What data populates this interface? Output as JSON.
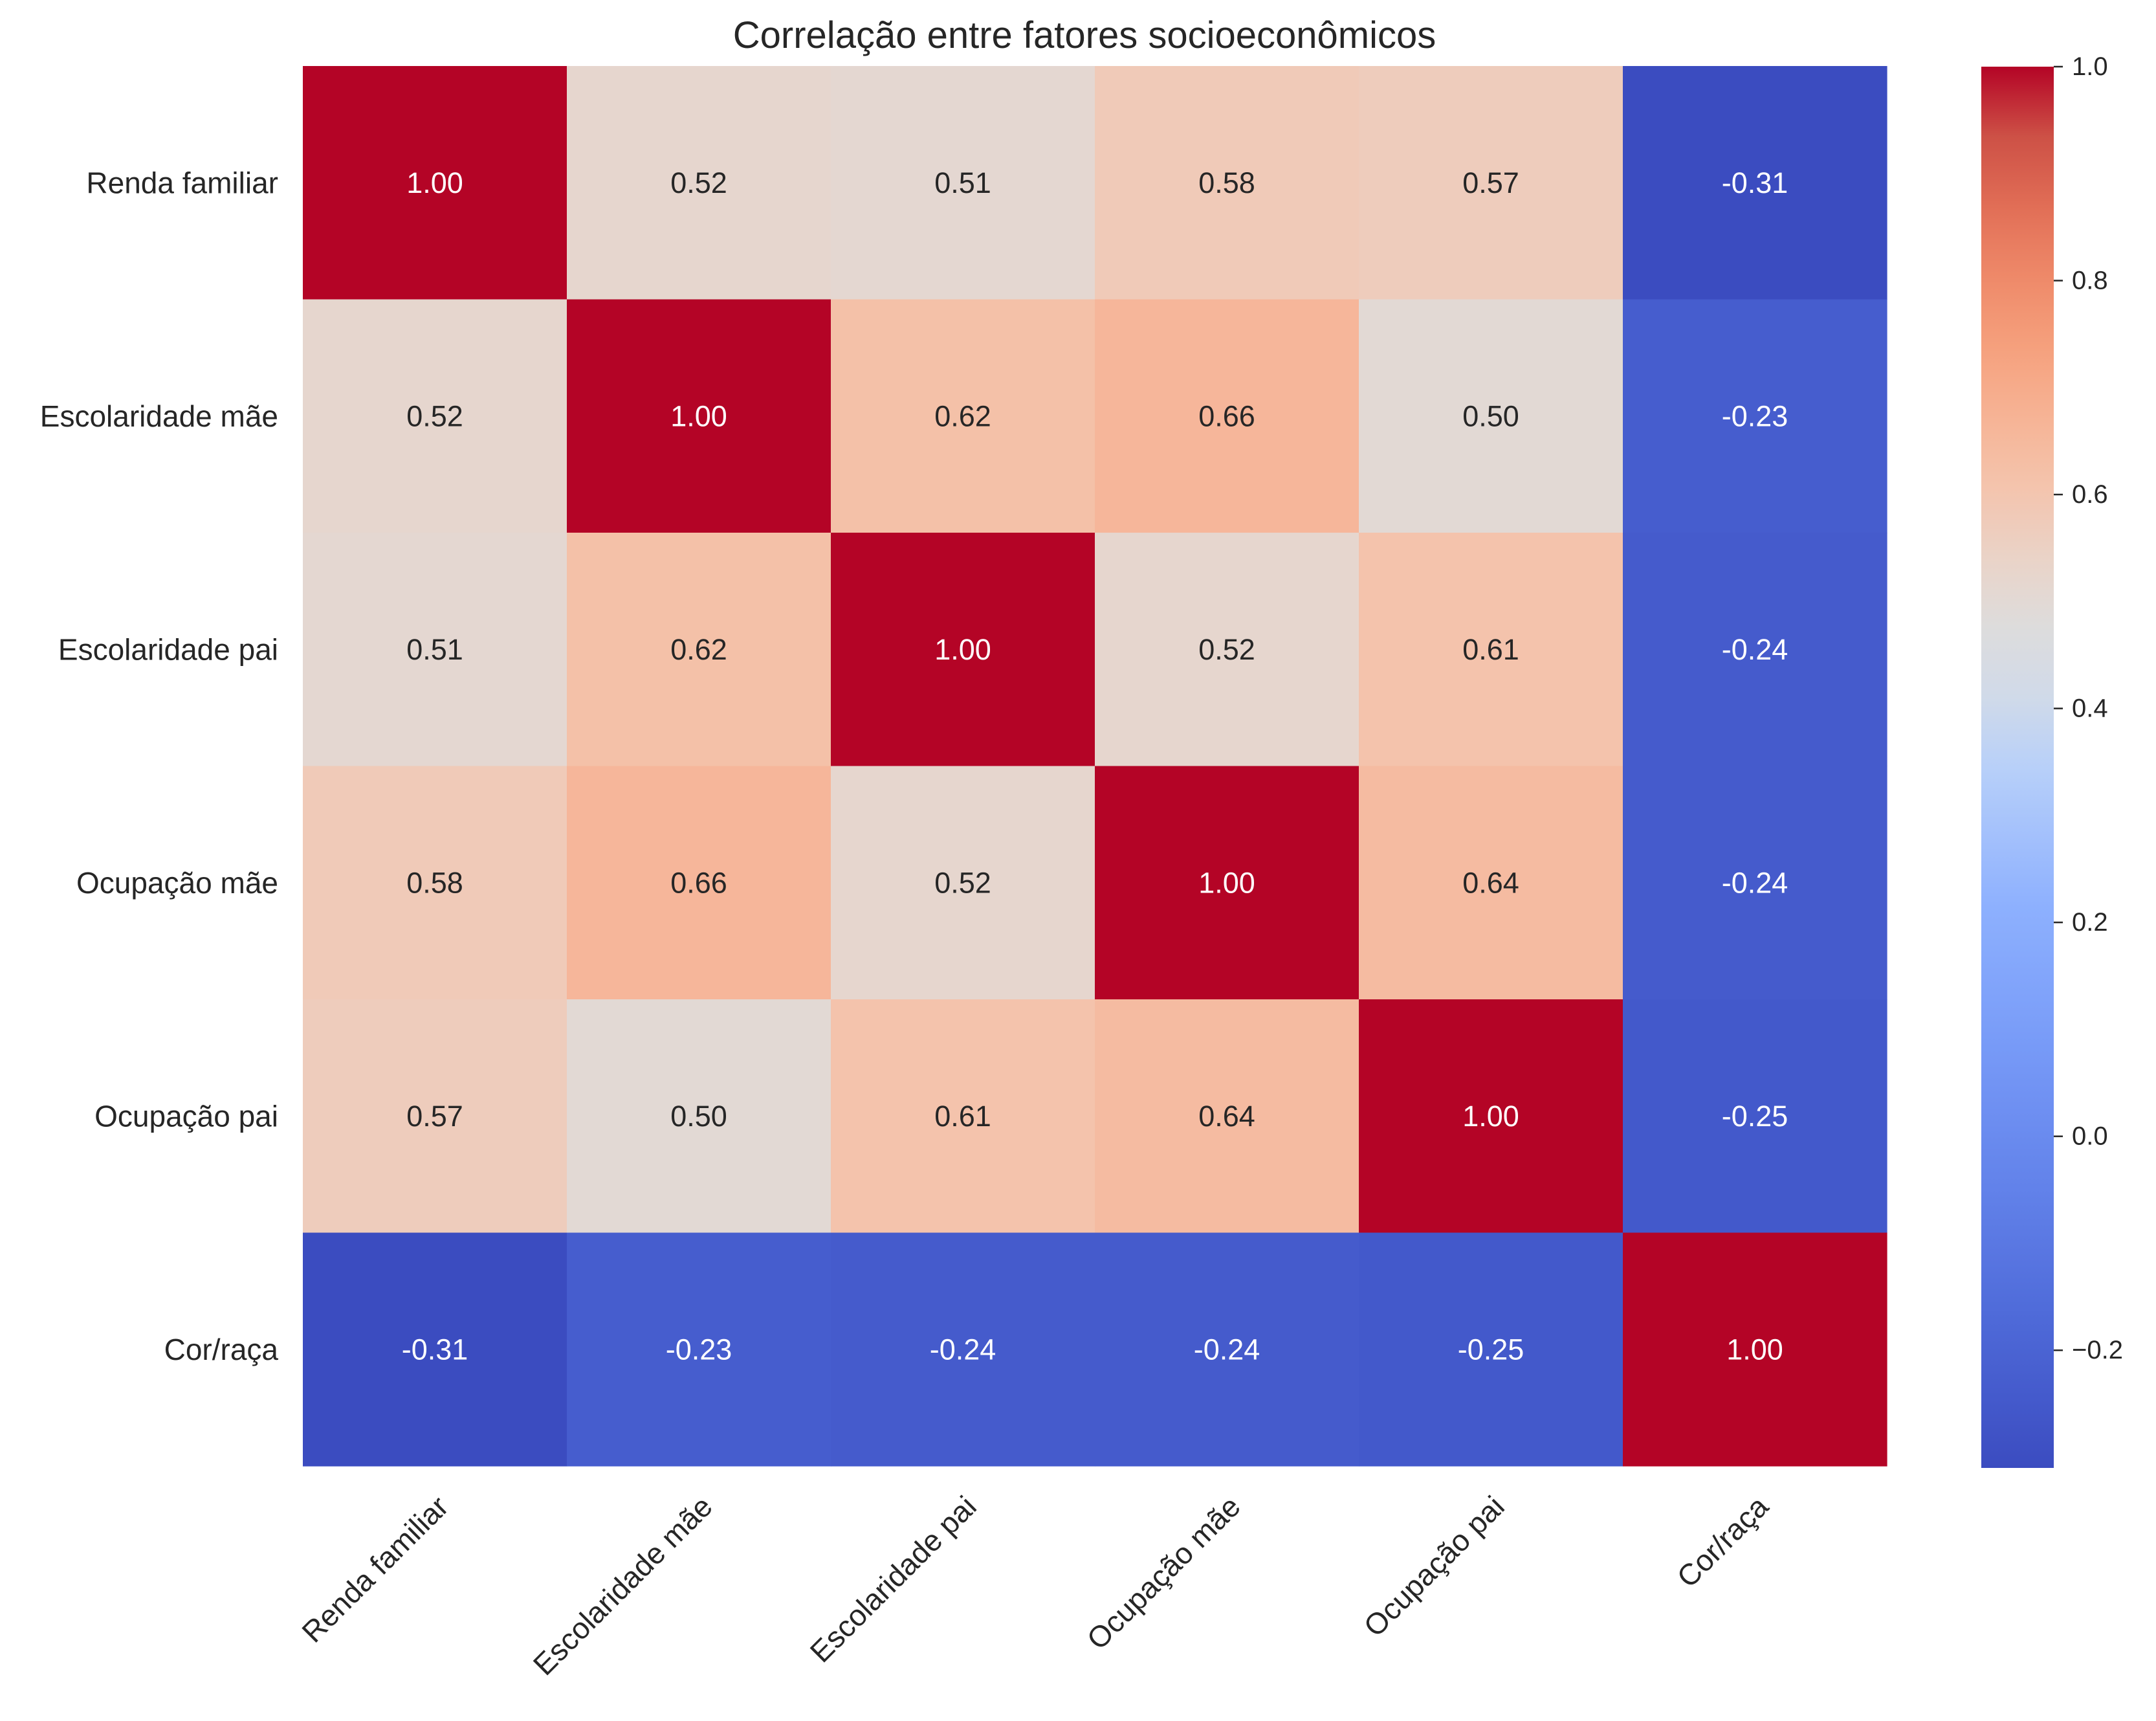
{
  "chart_data": {
    "type": "heatmap",
    "title": "Correlação entre fatores socioeconômicos",
    "xlabel": "",
    "ylabel": "",
    "colormap": "coolwarm",
    "x_categories": [
      "Renda familiar",
      "Escolaridade mãe",
      "Escolaridade pai",
      "Ocupação mãe",
      "Ocupação pai",
      "Cor/raça"
    ],
    "y_categories": [
      "Renda familiar",
      "Escolaridade mãe",
      "Escolaridade pai",
      "Ocupação mãe",
      "Ocupação pai",
      "Cor/raça"
    ],
    "values": [
      [
        1.0,
        0.52,
        0.51,
        0.58,
        0.57,
        -0.31
      ],
      [
        0.52,
        1.0,
        0.62,
        0.66,
        0.5,
        -0.23
      ],
      [
        0.51,
        0.62,
        1.0,
        0.52,
        0.61,
        -0.24
      ],
      [
        0.58,
        0.66,
        0.52,
        1.0,
        0.64,
        -0.24
      ],
      [
        0.57,
        0.5,
        0.61,
        0.64,
        1.0,
        -0.25
      ],
      [
        -0.31,
        -0.23,
        -0.24,
        -0.24,
        -0.25,
        1.0
      ]
    ],
    "annotation_format": "0.00",
    "value_range": [
      -0.31,
      1.0
    ],
    "colorbar": {
      "ticks": [
        -0.2,
        0.0,
        0.2,
        0.4,
        0.6,
        0.8,
        1.0
      ],
      "tick_labels": [
        "−0.2",
        "0.0",
        "0.2",
        "0.4",
        "0.6",
        "0.8",
        "1.0"
      ]
    },
    "grid": false,
    "legend": "colorbar-right"
  }
}
